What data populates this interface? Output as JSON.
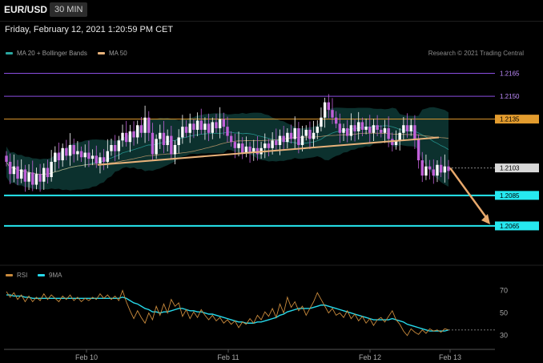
{
  "header": {
    "symbol": "EUR/USD",
    "timeframe": "30 MIN"
  },
  "timestamp": "Friday, February 12, 2021 1:20:59 PM CET",
  "legend": {
    "ma20": {
      "label": "MA 20 + Bollinger Bands",
      "color": "#2aa6a0"
    },
    "ma50": {
      "label": "MA 50",
      "color": "#e8b27a"
    },
    "credit": "Research © 2021 Trading Central"
  },
  "rsi_legend": {
    "rsi": {
      "label": "RSI",
      "color": "#c98a3c"
    },
    "ma9": {
      "label": "9MA",
      "color": "#26d9ea"
    }
  },
  "colors": {
    "up": "#ffffff",
    "down": "#c060d8",
    "band": "#0e3a36",
    "level": "#26e8f0"
  },
  "chart_data": [
    {
      "type": "candlestick",
      "title": "EUR/USD",
      "ylim": [
        1.2045,
        1.217
      ],
      "horizontal_levels": [
        {
          "value": 1.2165,
          "label": "1.2165",
          "color": "#8a4ee0",
          "label_text": "#c08cff",
          "box": "#000000"
        },
        {
          "value": 1.215,
          "label": "1.2150",
          "color": "#8a4ee0",
          "label_text": "#c08cff",
          "box": "#000000"
        },
        {
          "value": 1.2135,
          "label": "1.2135",
          "color": "#e39c2e",
          "label_text": "#000000",
          "box": "#e39c2e"
        },
        {
          "value": 1.2103,
          "label": "1.2103",
          "color": "#888888",
          "label_text": "#000000",
          "box": "#d8d8d8",
          "dotted": true
        },
        {
          "value": 1.2085,
          "label": "1.2085",
          "color": "#26e8f0",
          "label_text": "#000000",
          "box": "#26e8f0"
        },
        {
          "value": 1.2065,
          "label": "1.2065",
          "color": "#26e8f0",
          "label_text": "#000000",
          "box": "#26e8f0"
        }
      ],
      "trendline": {
        "from_price": 1.2105,
        "to_price": 1.2123,
        "color": "#e8b27a"
      },
      "projection": {
        "from_price": 1.2103,
        "to_price": 1.2066,
        "color": "#e8a96c"
      },
      "x_ticks": [
        "Feb 10",
        "Feb 11",
        "Feb 12",
        "Feb 13"
      ],
      "closes": [
        1.2107,
        1.2099,
        1.2104,
        1.2096,
        1.2102,
        1.2094,
        1.21,
        1.2092,
        1.2099,
        1.2094,
        1.2103,
        1.2097,
        1.2107,
        1.2113,
        1.2108,
        1.2116,
        1.2111,
        1.2118,
        1.2112,
        1.2114,
        1.211,
        1.2113,
        1.2109,
        1.2111,
        1.2106,
        1.211,
        1.2107,
        1.2114,
        1.2118,
        1.2114,
        1.2121,
        1.2126,
        1.212,
        1.2127,
        1.2123,
        1.2131,
        1.2126,
        1.2136,
        1.2126,
        1.2112,
        1.2122,
        1.2126,
        1.2118,
        1.2124,
        1.2112,
        1.2118,
        1.2123,
        1.213,
        1.2126,
        1.2132,
        1.2128,
        1.2134,
        1.2128,
        1.2132,
        1.2126,
        1.2133,
        1.2129,
        1.2135,
        1.213,
        1.2124,
        1.212,
        1.2116,
        1.2119,
        1.2113,
        1.2117,
        1.2113,
        1.2116,
        1.2112,
        1.2116,
        1.2119,
        1.2116,
        1.2121,
        1.2118,
        1.2124,
        1.212,
        1.2126,
        1.2122,
        1.2129,
        1.2118,
        1.2124,
        1.2128,
        1.2122,
        1.2126,
        1.213,
        1.2136,
        1.2146,
        1.2141,
        1.2136,
        1.2132,
        1.2126,
        1.2129,
        1.2124,
        1.2131,
        1.2127,
        1.2133,
        1.2128,
        1.213,
        1.2126,
        1.2131,
        1.2128,
        1.2126,
        1.2129,
        1.2122,
        1.2118,
        1.2121,
        1.2126,
        1.2131,
        1.2127,
        1.2131,
        1.2122,
        1.2108,
        1.2098,
        1.2104,
        1.2102,
        1.2098,
        1.2105,
        1.21,
        1.2104,
        1.2101
      ],
      "rsi_panel": {
        "ticks": [
          70,
          50,
          30
        ],
        "ylim": [
          22,
          76
        ],
        "rsi": [
          69,
          64,
          68,
          62,
          66,
          60,
          65,
          60,
          64,
          61,
          67,
          62,
          66,
          63,
          60,
          65,
          62,
          66,
          61,
          64,
          60,
          63,
          61,
          64,
          62,
          67,
          63,
          66,
          62,
          65,
          61,
          70,
          60,
          52,
          45,
          52,
          46,
          41,
          50,
          44,
          56,
          48,
          58,
          50,
          62,
          56,
          59,
          47,
          53,
          45,
          51,
          46,
          53,
          48,
          44,
          48,
          43,
          46,
          41,
          44,
          40,
          43,
          37,
          42,
          40,
          45,
          41,
          48,
          44,
          51,
          47,
          54,
          46,
          58,
          50,
          64,
          55,
          60,
          52,
          56,
          48,
          54,
          60,
          68,
          62,
          56,
          50,
          54,
          48,
          50,
          46,
          52,
          45,
          49,
          43,
          47,
          41,
          45,
          39,
          44,
          46,
          42,
          47,
          52,
          44,
          40,
          34,
          30,
          36,
          33,
          31,
          35,
          32,
          36,
          34,
          35,
          33,
          36,
          35
        ],
        "ma9": [
          66,
          66,
          65,
          65,
          65,
          64,
          64,
          63,
          63,
          63,
          63,
          63,
          63,
          63,
          63,
          63,
          63,
          63,
          63,
          63,
          63,
          63,
          63,
          63,
          63,
          63,
          63,
          63,
          63,
          63,
          63,
          64,
          63,
          61,
          59,
          58,
          56,
          54,
          53,
          51,
          51,
          50,
          51,
          51,
          52,
          53,
          54,
          54,
          53,
          52,
          52,
          51,
          51,
          50,
          49,
          49,
          48,
          47,
          46,
          45,
          44,
          43,
          42,
          42,
          41,
          41,
          41,
          42,
          42,
          43,
          44,
          45,
          46,
          48,
          49,
          51,
          52,
          53,
          54,
          54,
          54,
          54,
          55,
          56,
          57,
          57,
          56,
          55,
          54,
          53,
          52,
          51,
          50,
          49,
          48,
          47,
          46,
          45,
          44,
          44,
          44,
          44,
          44,
          45,
          44,
          43,
          42,
          40,
          39,
          38,
          37,
          36,
          35,
          34,
          34,
          34,
          34,
          34,
          35
        ]
      }
    }
  ]
}
